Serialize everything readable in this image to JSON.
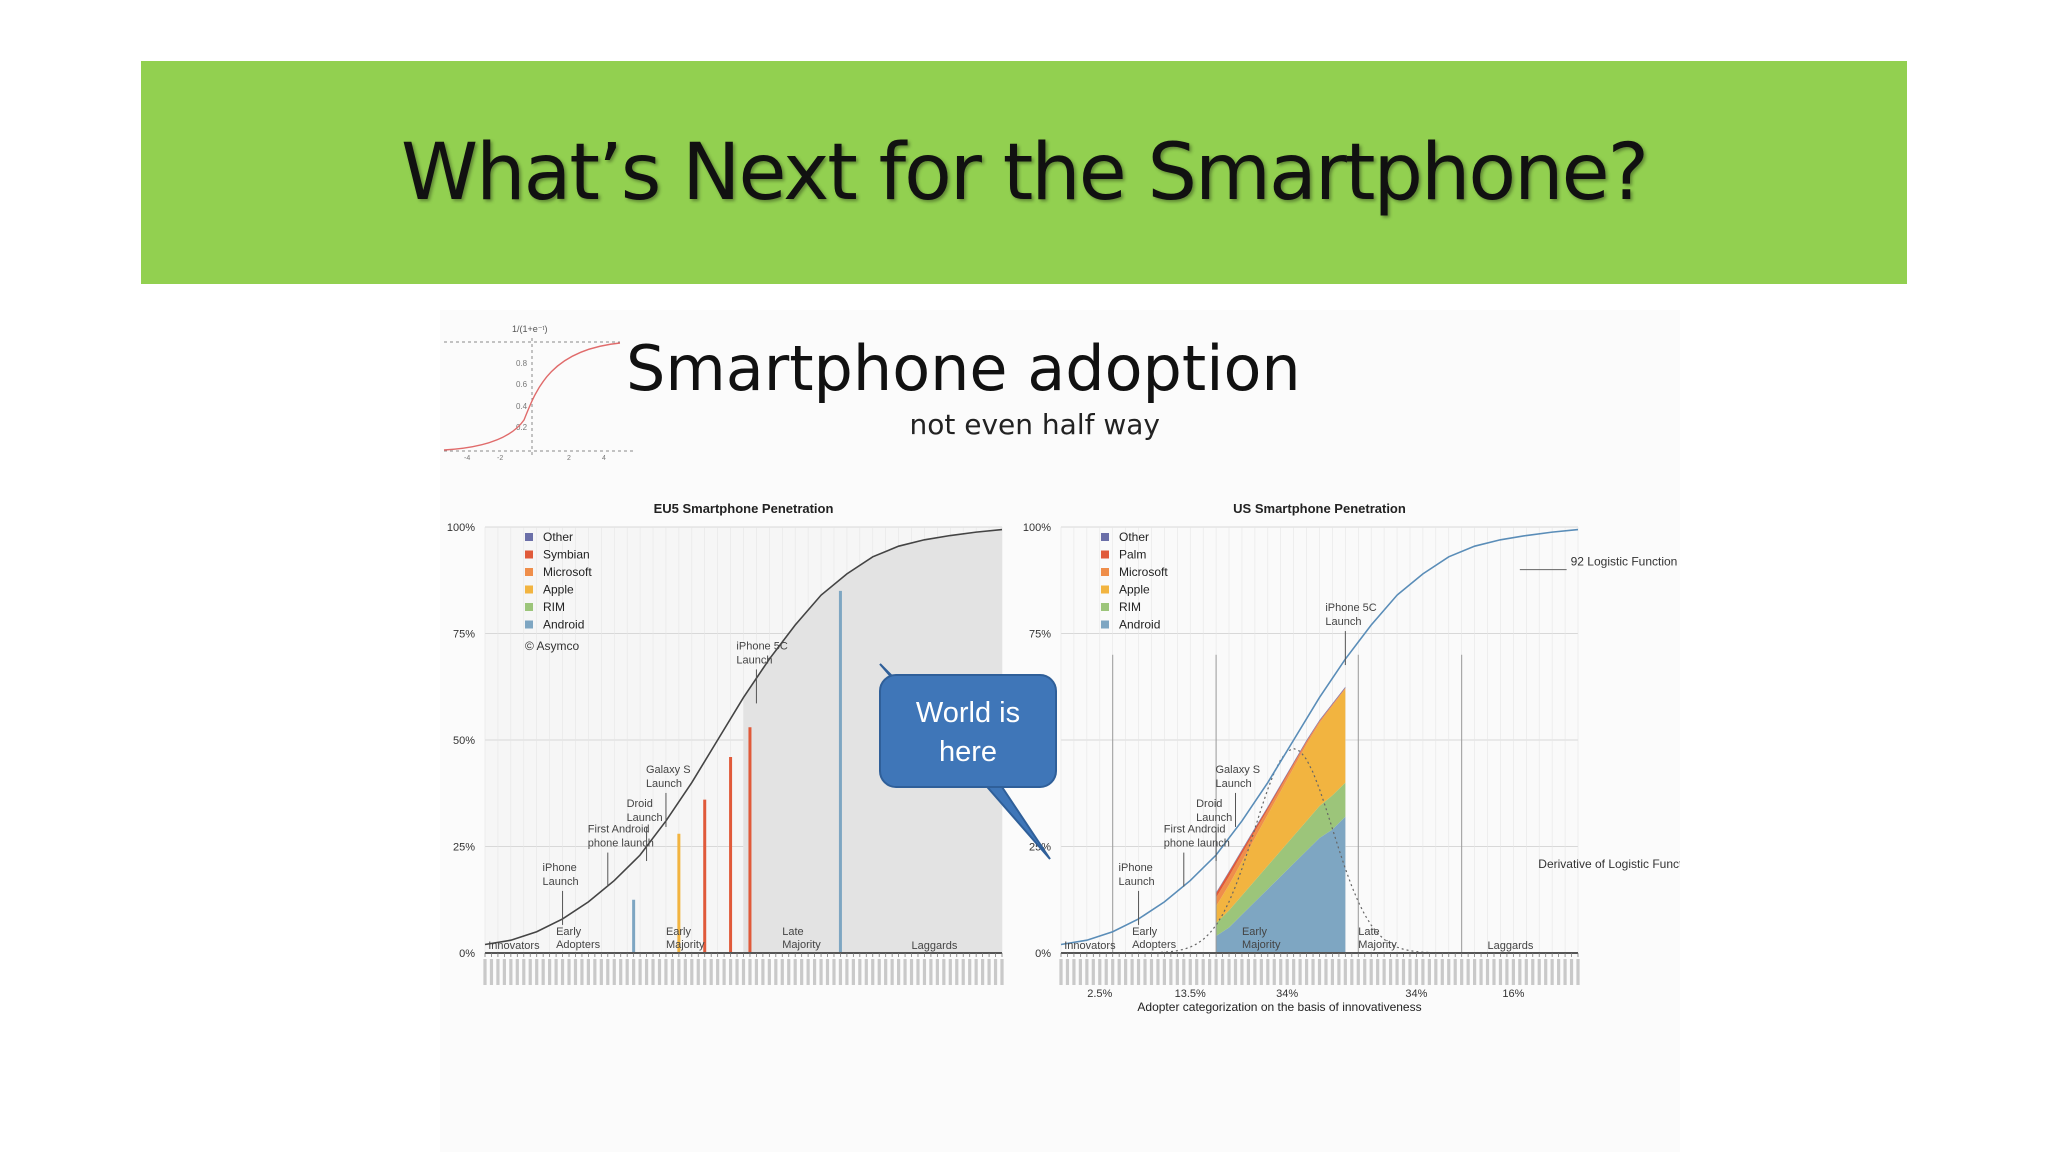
{
  "slide": {
    "title": "What’s Next for the Smartphone?"
  },
  "figure": {
    "headline": "Smartphone adoption",
    "subhead": "not even half way",
    "sigmoid_inset": {
      "formula": "1/(1+e⁻ᵗ)",
      "y_ticks": [
        "0.8",
        "0.6",
        "0.4",
        "0.2"
      ],
      "x_ticks": [
        "-4",
        "-2",
        "2",
        "4"
      ]
    },
    "callout": "World is here"
  },
  "colors": {
    "banner": "#92d050",
    "other": "#6b6fa8",
    "symbian": "#e05a3a",
    "microsoft": "#ef8e4a",
    "apple": "#f2b440",
    "rim": "#9cc57a",
    "android": "#7ea6c2",
    "curve": "#5a8db8",
    "callout": "#3f76b8"
  },
  "chart_data": [
    {
      "type": "area",
      "title": "EU5 Smartphone Penetration",
      "y_ticks": [
        "100%",
        "75%",
        "50%",
        "25%",
        "0%"
      ],
      "ylim": [
        0,
        100
      ],
      "legend": [
        "Other",
        "Symbian",
        "Microsoft",
        "Apple",
        "RIM",
        "Android"
      ],
      "legend_placement": "top-left",
      "credit": "© Asymco",
      "logistic_curve": [
        [
          0,
          2
        ],
        [
          4,
          3
        ],
        [
          8,
          5
        ],
        [
          12,
          8
        ],
        [
          16,
          12
        ],
        [
          20,
          17
        ],
        [
          24,
          23
        ],
        [
          28,
          31
        ],
        [
          32,
          40
        ],
        [
          36,
          50
        ],
        [
          40,
          60
        ],
        [
          44,
          69
        ],
        [
          48,
          77
        ],
        [
          52,
          84
        ],
        [
          56,
          89
        ],
        [
          60,
          93
        ],
        [
          64,
          95.5
        ],
        [
          68,
          97
        ],
        [
          72,
          98
        ],
        [
          76,
          98.8
        ],
        [
          80,
          99.4
        ]
      ],
      "penetration_markers": [
        [
          23,
          12.5
        ],
        [
          30,
          28
        ],
        [
          34,
          36
        ],
        [
          38,
          46
        ],
        [
          41,
          53
        ],
        [
          55,
          85
        ]
      ],
      "annotations": [
        {
          "label": "iPhone\nLaunch",
          "x": 12
        },
        {
          "label": "First Android\nphone launch",
          "x": 19
        },
        {
          "label": "Droid\nLaunch",
          "x": 25
        },
        {
          "label": "Galaxy S\nLaunch",
          "x": 28
        },
        {
          "label": "iPhone 5C\nLaunch",
          "x": 42
        }
      ],
      "segments": [
        "Innovators",
        "Early\nAdopters",
        "Early\nMajority",
        "Late\nMajority",
        "Laggards"
      ]
    },
    {
      "type": "area",
      "title": "US Smartphone Penetration",
      "y_ticks": [
        "100%",
        "75%",
        "50%",
        "25%",
        "0%"
      ],
      "ylim": [
        0,
        100
      ],
      "legend": [
        "Other",
        "Palm",
        "Microsoft",
        "Apple",
        "RIM",
        "Android"
      ],
      "legend_placement": "top-left",
      "curve_labels": [
        "92 Logistic Function",
        "Derivative of Logistic Function"
      ],
      "logistic_curve": [
        [
          0,
          2
        ],
        [
          4,
          3
        ],
        [
          8,
          5
        ],
        [
          12,
          8
        ],
        [
          16,
          12
        ],
        [
          20,
          17
        ],
        [
          24,
          23
        ],
        [
          28,
          31
        ],
        [
          32,
          40
        ],
        [
          36,
          50
        ],
        [
          40,
          60
        ],
        [
          44,
          69
        ],
        [
          48,
          77
        ],
        [
          52,
          84
        ],
        [
          56,
          89
        ],
        [
          60,
          93
        ],
        [
          64,
          95.5
        ],
        [
          68,
          97
        ],
        [
          72,
          98
        ],
        [
          76,
          98.8
        ],
        [
          80,
          99.4
        ]
      ],
      "stacked_area": {
        "x": [
          24,
          26,
          28,
          30,
          32,
          34,
          36,
          38,
          40,
          42,
          44
        ],
        "android": [
          4,
          6,
          9,
          12,
          15,
          18,
          21,
          24,
          27,
          29,
          32
        ],
        "rim": [
          3,
          4,
          4.5,
          5,
          5.5,
          6,
          6.5,
          7,
          7.5,
          8,
          8
        ],
        "apple": [
          4,
          6,
          8,
          10,
          12,
          14,
          16,
          18,
          19.5,
          21,
          22
        ],
        "microsoft": [
          2,
          2,
          1.8,
          1.5,
          1.2,
          1,
          0.8,
          0.6,
          0.4,
          0.3,
          0.2
        ],
        "palm": [
          1,
          1,
          0.8,
          0.7,
          0.5,
          0.4,
          0.3,
          0.2,
          0.1,
          0.1,
          0.1
        ],
        "other": [
          0.2,
          0.2,
          0.2,
          0.2,
          0.2,
          0.2,
          0.2,
          0.2,
          0.2,
          0.2,
          0.2
        ]
      },
      "annotations": [
        {
          "label": "iPhone\nLaunch",
          "x": 12
        },
        {
          "label": "First Android\nphone launch",
          "x": 19
        },
        {
          "label": "Droid\nLaunch",
          "x": 24
        },
        {
          "label": "Galaxy S\nLaunch",
          "x": 27
        },
        {
          "label": "iPhone 5C\nLaunch",
          "x": 44
        }
      ],
      "segments": [
        "Innovators",
        "Early\nAdopters",
        "Early\nMajority",
        "Late\nMajority",
        "Laggards"
      ],
      "segment_shares": [
        "2.5%",
        "13.5%",
        "34%",
        "34%",
        "16%"
      ],
      "xlabel": "Adopter categorization on the basis of innovativeness"
    }
  ]
}
